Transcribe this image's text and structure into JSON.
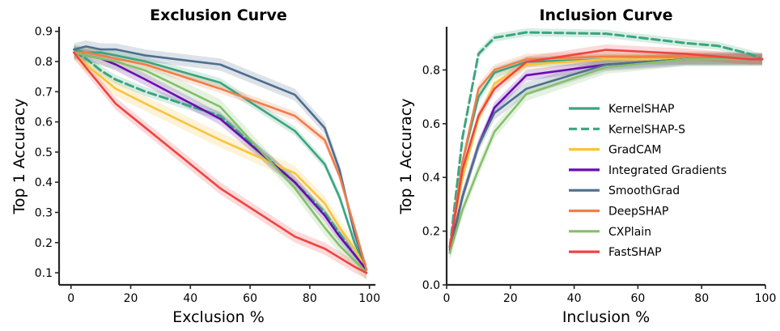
{
  "colors": {
    "KernelSHAP": "#3aa57f",
    "KernelSHAP-S": "#3aa57f",
    "GradCAM": "#f9c43b",
    "Integrated Gradients": "#6a0dad",
    "SmoothGrad": "#4e6e8e",
    "DeepSHAP": "#f07e4a",
    "CXPlain": "#84c06a",
    "FastSHAP": "#ee4443"
  },
  "legend": {
    "placement": "center-right of Inclusion Curve",
    "entries": [
      {
        "name": "KernelSHAP",
        "style": "solid"
      },
      {
        "name": "KernelSHAP-S",
        "style": "dashed"
      },
      {
        "name": "GradCAM",
        "style": "solid"
      },
      {
        "name": "Integrated Gradients",
        "style": "solid"
      },
      {
        "name": "SmoothGrad",
        "style": "solid"
      },
      {
        "name": "DeepSHAP",
        "style": "solid"
      },
      {
        "name": "CXPlain",
        "style": "solid"
      },
      {
        "name": "FastSHAP",
        "style": "solid"
      }
    ]
  },
  "chart_data": [
    {
      "type": "line",
      "title": "Exclusion Curve",
      "xlabel": "Exclusion %",
      "ylabel": "Top 1 Accuracy",
      "xlim": [
        -4,
        102
      ],
      "ylim": [
        0.06,
        0.91
      ],
      "xticks": [
        "0",
        "20",
        "40",
        "60",
        "80",
        "100"
      ],
      "yticks": [
        "0.1",
        "0.2",
        "0.3",
        "0.4",
        "0.5",
        "0.6",
        "0.7",
        "0.8",
        "0.9"
      ],
      "grid": false,
      "x": [
        1,
        5,
        10,
        15,
        25,
        50,
        75,
        85,
        90,
        95,
        99
      ],
      "series": [
        {
          "name": "KernelSHAP",
          "style": "solid",
          "values": [
            0.84,
            0.83,
            0.83,
            0.82,
            0.8,
            0.73,
            0.57,
            0.46,
            0.35,
            0.2,
            0.11
          ],
          "band": 0.015
        },
        {
          "name": "KernelSHAP-S",
          "style": "dashed",
          "values": [
            0.83,
            0.81,
            0.77,
            0.74,
            0.7,
            0.62,
            0.4,
            0.3,
            0.23,
            0.16,
            0.11
          ],
          "band": 0.015
        },
        {
          "name": "GradCAM",
          "style": "solid",
          "values": [
            0.83,
            0.79,
            0.75,
            0.71,
            0.66,
            0.54,
            0.43,
            0.33,
            0.25,
            0.18,
            0.11
          ],
          "band": 0.025
        },
        {
          "name": "Integrated Gradients",
          "style": "solid",
          "values": [
            0.83,
            0.82,
            0.81,
            0.79,
            0.74,
            0.61,
            0.4,
            0.29,
            0.22,
            0.16,
            0.11
          ],
          "band": 0.02
        },
        {
          "name": "SmoothGrad",
          "style": "solid",
          "values": [
            0.84,
            0.85,
            0.84,
            0.84,
            0.82,
            0.79,
            0.69,
            0.58,
            0.44,
            0.23,
            0.11
          ],
          "band": 0.02
        },
        {
          "name": "DeepSHAP",
          "style": "solid",
          "values": [
            0.83,
            0.83,
            0.82,
            0.81,
            0.79,
            0.71,
            0.62,
            0.54,
            0.42,
            0.25,
            0.11
          ],
          "band": 0.015
        },
        {
          "name": "CXPlain",
          "style": "solid",
          "values": [
            0.83,
            0.82,
            0.81,
            0.8,
            0.77,
            0.65,
            0.38,
            0.25,
            0.19,
            0.14,
            0.1
          ],
          "band": 0.025
        },
        {
          "name": "FastSHAP",
          "style": "solid",
          "values": [
            0.83,
            0.78,
            0.72,
            0.66,
            0.58,
            0.38,
            0.22,
            0.18,
            0.15,
            0.12,
            0.1
          ],
          "band": 0.02
        }
      ]
    },
    {
      "type": "line",
      "title": "Inclusion Curve",
      "xlabel": "Inclusion %",
      "ylabel": "Top 1 Accuracy",
      "xlim": [
        0,
        100
      ],
      "ylim": [
        0.0,
        0.955
      ],
      "xticks": [
        "0",
        "20",
        "40",
        "60",
        "80",
        "100"
      ],
      "yticks": [
        "0.0",
        "0.2",
        "0.4",
        "0.6",
        "0.8"
      ],
      "grid": false,
      "x": [
        1,
        5,
        10,
        15,
        25,
        50,
        75,
        85,
        95,
        99
      ],
      "series": [
        {
          "name": "KernelSHAP",
          "style": "solid",
          "values": [
            0.14,
            0.46,
            0.7,
            0.79,
            0.83,
            0.84,
            0.84,
            0.84,
            0.84,
            0.84
          ],
          "band": 0.02
        },
        {
          "name": "KernelSHAP-S",
          "style": "dashed",
          "values": [
            0.14,
            0.55,
            0.86,
            0.92,
            0.94,
            0.935,
            0.9,
            0.89,
            0.86,
            0.84
          ],
          "band": 0.015
        },
        {
          "name": "GradCAM",
          "style": "solid",
          "values": [
            0.14,
            0.4,
            0.62,
            0.75,
            0.82,
            0.84,
            0.84,
            0.84,
            0.84,
            0.84
          ],
          "band": 0.02
        },
        {
          "name": "Integrated Gradients",
          "style": "solid",
          "values": [
            0.13,
            0.33,
            0.52,
            0.66,
            0.78,
            0.82,
            0.84,
            0.84,
            0.84,
            0.84
          ],
          "band": 0.02
        },
        {
          "name": "SmoothGrad",
          "style": "solid",
          "values": [
            0.12,
            0.33,
            0.52,
            0.64,
            0.73,
            0.82,
            0.84,
            0.84,
            0.84,
            0.84
          ],
          "band": 0.025
        },
        {
          "name": "DeepSHAP",
          "style": "solid",
          "values": [
            0.14,
            0.46,
            0.73,
            0.8,
            0.84,
            0.85,
            0.85,
            0.85,
            0.84,
            0.84
          ],
          "band": 0.02
        },
        {
          "name": "CXPlain",
          "style": "solid",
          "values": [
            0.12,
            0.28,
            0.43,
            0.57,
            0.71,
            0.81,
            0.84,
            0.84,
            0.84,
            0.84
          ],
          "band": 0.025
        },
        {
          "name": "FastSHAP",
          "style": "solid",
          "values": [
            0.14,
            0.43,
            0.63,
            0.73,
            0.83,
            0.875,
            0.86,
            0.85,
            0.84,
            0.84
          ],
          "band": 0.02
        }
      ]
    }
  ]
}
